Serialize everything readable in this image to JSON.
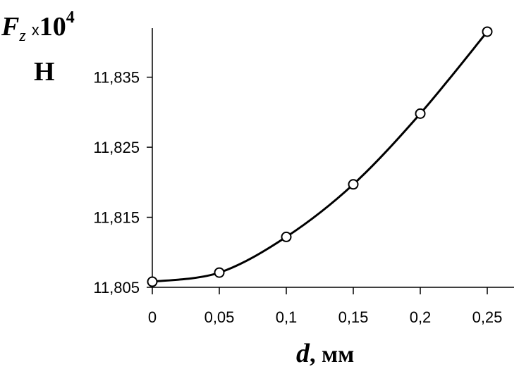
{
  "chart_data": {
    "type": "line",
    "title": "",
    "xlabel": {
      "var": "d",
      "unit": ", мм"
    },
    "ylabel": {
      "var": "F",
      "sub": "z",
      "mult": "x",
      "base": "10",
      "exp": "4",
      "unit": "Н"
    },
    "x_ticks": [
      "0",
      "0,05",
      "0,1",
      "0,15",
      "0,2",
      "0,25"
    ],
    "y_ticks": [
      "11,805",
      "11,815",
      "11,825",
      "11,835"
    ],
    "xlim": [
      0,
      0.27
    ],
    "ylim": [
      11.805,
      11.842
    ],
    "grid": false,
    "series": [
      {
        "x": [
          0,
          0.05,
          0.1,
          0.15,
          0.2,
          0.25
        ],
        "y": [
          11.8058,
          11.8071,
          11.8122,
          11.8197,
          11.8298,
          11.8415
        ],
        "marker": "circle-open",
        "color": "#000000"
      }
    ]
  }
}
